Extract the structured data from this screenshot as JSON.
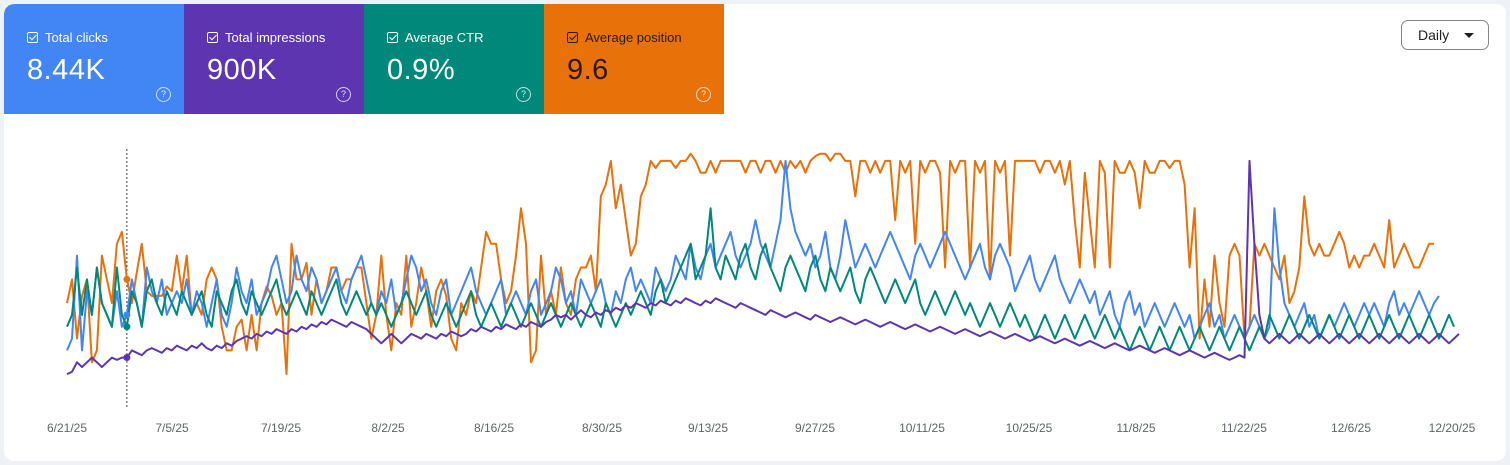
{
  "metrics": [
    {
      "key": "clicks",
      "label": "Total clicks",
      "value": "8.44K",
      "color": "#4285f4",
      "checked": true,
      "help_icon": "help-circle-icon"
    },
    {
      "key": "impressions",
      "label": "Total impressions",
      "value": "900K",
      "color": "#5e35b1",
      "checked": true,
      "help_icon": "help-circle-icon"
    },
    {
      "key": "ctr",
      "label": "Average CTR",
      "value": "0.9%",
      "color": "#00897b",
      "checked": true,
      "help_icon": "help-circle-icon"
    },
    {
      "key": "position",
      "label": "Average position",
      "value": "9.6",
      "color": "#e8710a",
      "checked": true,
      "help_icon": "help-circle-icon"
    }
  ],
  "period_select": {
    "label": "Daily",
    "icon": "caret-down-icon"
  },
  "chart_data": {
    "type": "line",
    "title": "",
    "xlabel": "",
    "ylabel": "",
    "grid": false,
    "x_tick_labels": [
      "6/21/25",
      "7/5/25",
      "7/19/25",
      "8/2/25",
      "8/16/25",
      "8/30/25",
      "9/13/25",
      "9/27/25",
      "10/11/25",
      "10/25/25",
      "11/8/25",
      "11/22/25",
      "12/6/25",
      "12/20/25"
    ],
    "x_range": [
      "6/21/25",
      "12/21/25"
    ],
    "hover_index": 12,
    "series": [
      {
        "key": "position",
        "color": "#e8710a",
        "values": [
          0.35,
          0.45,
          0.2,
          0.38,
          0.45,
          0.1,
          0.15,
          0.55,
          0.45,
          0.35,
          0.6,
          0.65,
          0.45,
          0.35,
          0.48,
          0.6,
          0.4,
          0.38,
          0.38,
          0.38,
          0.42,
          0.4,
          0.55,
          0.4,
          0.55,
          0.3,
          0.35,
          0.3,
          0.45,
          0.5,
          0.45,
          0.25,
          0.15,
          0.15,
          0.25,
          0.28,
          0.15,
          0.3,
          0.15,
          0.35,
          0.42,
          0.38,
          0.3,
          0.35,
          0.05,
          0.6,
          0.45,
          0.45,
          0.52,
          0.3,
          0.45,
          0.35,
          0.4,
          0.5,
          0.5,
          0.4,
          0.45,
          0.45,
          0.5,
          0.5,
          0.35,
          0.2,
          0.3,
          0.55,
          0.3,
          0.15,
          0.35,
          0.3,
          0.55,
          0.25,
          0.35,
          0.5,
          0.4,
          0.25,
          0.4,
          0.45,
          0.38,
          0.2,
          0.15,
          0.35,
          0.3,
          0.4,
          0.35,
          0.5,
          0.65,
          0.6,
          0.6,
          0.45,
          0.35,
          0.4,
          0.55,
          0.75,
          0.6,
          0.1,
          0.15,
          0.55,
          0.3,
          0.4,
          0.3,
          0.5,
          0.35,
          0.3,
          0.45,
          0.5,
          0.5,
          0.55,
          0.4,
          0.8,
          0.85,
          0.95,
          0.75,
          0.85,
          0.7,
          0.55,
          0.6,
          0.8,
          0.85,
          0.95,
          0.92,
          0.95,
          0.95,
          0.95,
          0.92,
          0.95,
          0.95,
          0.98,
          0.95,
          0.9,
          0.9,
          0.95,
          0.9,
          0.95,
          0.95,
          0.95,
          0.95,
          0.95,
          0.9,
          0.95,
          0.95,
          0.9,
          0.95,
          0.95,
          0.9,
          0.95,
          0.9,
          0.95,
          0.92,
          0.95,
          0.9,
          0.95,
          0.97,
          0.98,
          0.98,
          0.95,
          0.98,
          0.98,
          0.95,
          0.95,
          0.8,
          0.95,
          0.95,
          0.9,
          0.95,
          0.9,
          0.95,
          0.95,
          0.7,
          0.95,
          0.9,
          0.95,
          0.6,
          0.95,
          0.9,
          0.95,
          0.95,
          0.9,
          0.5,
          0.95,
          0.9,
          0.95,
          0.95,
          0.5,
          0.95,
          0.9,
          0.95,
          0.45,
          0.95,
          0.9,
          0.95,
          0.55,
          0.95,
          0.95,
          0.95,
          0.95,
          0.95,
          0.9,
          0.95,
          0.95,
          0.9,
          0.95,
          0.85,
          0.95,
          0.7,
          0.5,
          0.9,
          0.7,
          0.5,
          0.95,
          0.9,
          0.5,
          0.95,
          0.9,
          0.9,
          0.95,
          0.9,
          0.75,
          0.95,
          0.9,
          0.9,
          0.95,
          0.95,
          0.92,
          0.95,
          0.95,
          0.85,
          0.5,
          0.75,
          0.2,
          0.45,
          0.25,
          0.55,
          0.35,
          0.25,
          0.55,
          0.6,
          0.55,
          0.2,
          0.25,
          0.6,
          0.55,
          0.6,
          0.55,
          0.5,
          0.45,
          0.55,
          0.35,
          0.4,
          0.5,
          0.8,
          0.6,
          0.55,
          0.6,
          0.55,
          0.55,
          0.6,
          0.65,
          0.6,
          0.5,
          0.55,
          0.5,
          0.55,
          0.55,
          0.6,
          0.55,
          0.5,
          0.7,
          0.5,
          0.55,
          0.6,
          0.55,
          0.5,
          0.5,
          0.55,
          0.6,
          0.6
        ]
      },
      {
        "key": "clicks",
        "color": "#4285f4",
        "values": [
          0.15,
          0.2,
          0.55,
          0.15,
          0.4,
          0.3,
          0.5,
          0.35,
          0.3,
          0.25,
          0.4,
          0.25,
          0.3,
          0.45,
          0.35,
          0.25,
          0.5,
          0.4,
          0.35,
          0.45,
          0.3,
          0.35,
          0.4,
          0.35,
          0.45,
          0.3,
          0.4,
          0.35,
          0.25,
          0.35,
          0.45,
          0.3,
          0.25,
          0.35,
          0.5,
          0.4,
          0.35,
          0.45,
          0.3,
          0.35,
          0.4,
          0.5,
          0.55,
          0.45,
          0.35,
          0.4,
          0.55,
          0.45,
          0.4,
          0.5,
          0.45,
          0.35,
          0.4,
          0.45,
          0.5,
          0.4,
          0.35,
          0.45,
          0.5,
          0.55,
          0.45,
          0.35,
          0.3,
          0.4,
          0.35,
          0.45,
          0.3,
          0.35,
          0.45,
          0.55,
          0.5,
          0.4,
          0.45,
          0.35,
          0.3,
          0.4,
          0.45,
          0.3,
          0.35,
          0.4,
          0.45,
          0.5,
          0.4,
          0.35,
          0.3,
          0.35,
          0.4,
          0.45,
          0.3,
          0.35,
          0.4,
          0.35,
          0.3,
          0.4,
          0.45,
          0.3,
          0.35,
          0.4,
          0.5,
          0.45,
          0.35,
          0.4,
          0.3,
          0.45,
          0.4,
          0.35,
          0.4,
          0.45,
          0.35,
          0.3,
          0.4,
          0.35,
          0.45,
          0.5,
          0.4,
          0.45,
          0.4,
          0.35,
          0.5,
          0.45,
          0.4,
          0.45,
          0.55,
          0.5,
          0.45,
          0.6,
          0.5,
          0.45,
          0.55,
          0.6,
          0.5,
          0.55,
          0.6,
          0.65,
          0.55,
          0.5,
          0.55,
          0.6,
          0.7,
          0.6,
          0.55,
          0.5,
          0.6,
          0.7,
          0.95,
          0.75,
          0.65,
          0.6,
          0.55,
          0.6,
          0.5,
          0.55,
          0.65,
          0.5,
          0.45,
          0.55,
          0.7,
          0.6,
          0.5,
          0.55,
          0.6,
          0.55,
          0.5,
          0.55,
          0.6,
          0.65,
          0.6,
          0.55,
          0.5,
          0.45,
          0.55,
          0.6,
          0.55,
          0.5,
          0.55,
          0.6,
          0.65,
          0.6,
          0.55,
          0.5,
          0.45,
          0.5,
          0.55,
          0.6,
          0.5,
          0.45,
          0.55,
          0.6,
          0.55,
          0.5,
          0.4,
          0.45,
          0.5,
          0.55,
          0.45,
          0.4,
          0.45,
          0.5,
          0.55,
          0.45,
          0.4,
          0.35,
          0.4,
          0.45,
          0.4,
          0.35,
          0.4,
          0.3,
          0.35,
          0.4,
          0.3,
          0.25,
          0.35,
          0.4,
          0.3,
          0.35,
          0.25,
          0.3,
          0.35,
          0.3,
          0.25,
          0.3,
          0.35,
          0.3,
          0.25,
          0.3,
          0.2,
          0.25,
          0.3,
          0.35,
          0.25,
          0.3,
          0.2,
          0.25,
          0.3,
          0.25,
          0.2,
          0.25,
          0.3,
          0.25,
          0.2,
          0.25,
          0.75,
          0.5,
          0.35,
          0.3,
          0.25,
          0.3,
          0.35,
          0.25,
          0.3,
          0.2,
          0.25,
          0.3,
          0.25,
          0.3,
          0.35,
          0.3,
          0.25,
          0.3,
          0.35,
          0.3,
          0.35,
          0.3,
          0.25,
          0.35,
          0.4,
          0.3,
          0.35,
          0.3,
          0.35,
          0.4,
          0.35,
          0.3,
          0.35,
          0.38
        ]
      },
      {
        "key": "ctr",
        "color": "#00897b",
        "values": [
          0.25,
          0.3,
          0.5,
          0.3,
          0.45,
          0.3,
          0.5,
          0.35,
          0.3,
          0.25,
          0.5,
          0.3,
          0.25,
          0.4,
          0.35,
          0.25,
          0.4,
          0.45,
          0.35,
          0.3,
          0.4,
          0.35,
          0.3,
          0.4,
          0.35,
          0.3,
          0.35,
          0.4,
          0.3,
          0.25,
          0.4,
          0.35,
          0.3,
          0.4,
          0.45,
          0.35,
          0.3,
          0.4,
          0.35,
          0.3,
          0.35,
          0.4,
          0.45,
          0.35,
          0.3,
          0.35,
          0.4,
          0.35,
          0.3,
          0.4,
          0.35,
          0.3,
          0.35,
          0.4,
          0.45,
          0.35,
          0.3,
          0.35,
          0.4,
          0.35,
          0.3,
          0.35,
          0.3,
          0.35,
          0.3,
          0.25,
          0.3,
          0.35,
          0.4,
          0.35,
          0.3,
          0.35,
          0.4,
          0.3,
          0.25,
          0.3,
          0.35,
          0.3,
          0.25,
          0.3,
          0.35,
          0.4,
          0.3,
          0.25,
          0.3,
          0.35,
          0.3,
          0.25,
          0.3,
          0.35,
          0.3,
          0.25,
          0.3,
          0.35,
          0.3,
          0.25,
          0.3,
          0.35,
          0.3,
          0.25,
          0.3,
          0.35,
          0.3,
          0.25,
          0.3,
          0.35,
          0.3,
          0.25,
          0.35,
          0.3,
          0.25,
          0.3,
          0.35,
          0.3,
          0.35,
          0.4,
          0.35,
          0.3,
          0.4,
          0.45,
          0.35,
          0.4,
          0.45,
          0.5,
          0.55,
          0.6,
          0.45,
          0.5,
          0.55,
          0.75,
          0.5,
          0.45,
          0.55,
          0.5,
          0.45,
          0.55,
          0.6,
          0.5,
          0.45,
          0.55,
          0.6,
          0.5,
          0.45,
          0.4,
          0.5,
          0.55,
          0.5,
          0.45,
          0.4,
          0.5,
          0.55,
          0.45,
          0.4,
          0.5,
          0.45,
          0.4,
          0.45,
          0.5,
          0.4,
          0.35,
          0.45,
          0.5,
          0.45,
          0.4,
          0.35,
          0.4,
          0.45,
          0.4,
          0.35,
          0.4,
          0.45,
          0.35,
          0.3,
          0.35,
          0.4,
          0.35,
          0.3,
          0.35,
          0.4,
          0.35,
          0.3,
          0.35,
          0.3,
          0.25,
          0.3,
          0.35,
          0.3,
          0.25,
          0.3,
          0.35,
          0.3,
          0.25,
          0.3,
          0.25,
          0.2,
          0.25,
          0.3,
          0.25,
          0.2,
          0.25,
          0.3,
          0.25,
          0.2,
          0.25,
          0.3,
          0.25,
          0.2,
          0.25,
          0.3,
          0.25,
          0.2,
          0.25,
          0.2,
          0.15,
          0.2,
          0.25,
          0.2,
          0.15,
          0.2,
          0.25,
          0.2,
          0.15,
          0.2,
          0.25,
          0.2,
          0.15,
          0.2,
          0.25,
          0.2,
          0.15,
          0.2,
          0.25,
          0.2,
          0.15,
          0.2,
          0.25,
          0.2,
          0.15,
          0.2,
          0.25,
          0.2,
          0.3,
          0.25,
          0.2,
          0.25,
          0.3,
          0.25,
          0.2,
          0.25,
          0.3,
          0.25,
          0.2,
          0.25,
          0.3,
          0.25,
          0.2,
          0.25,
          0.3,
          0.25,
          0.2,
          0.25,
          0.3,
          0.25,
          0.2,
          0.25,
          0.3,
          0.25,
          0.2,
          0.25,
          0.3,
          0.25,
          0.2,
          0.25,
          0.3,
          0.25,
          0.2,
          0.25,
          0.3,
          0.25
        ]
      },
      {
        "key": "impressions",
        "color": "#5e35b1",
        "values": [
          0.05,
          0.06,
          0.1,
          0.08,
          0.1,
          0.12,
          0.1,
          0.08,
          0.1,
          0.12,
          0.11,
          0.12,
          0.12,
          0.15,
          0.14,
          0.13,
          0.15,
          0.16,
          0.15,
          0.14,
          0.16,
          0.15,
          0.17,
          0.16,
          0.15,
          0.17,
          0.16,
          0.18,
          0.16,
          0.15,
          0.17,
          0.16,
          0.18,
          0.17,
          0.19,
          0.2,
          0.21,
          0.2,
          0.22,
          0.21,
          0.23,
          0.22,
          0.24,
          0.23,
          0.22,
          0.24,
          0.23,
          0.25,
          0.24,
          0.26,
          0.25,
          0.27,
          0.26,
          0.28,
          0.27,
          0.26,
          0.25,
          0.27,
          0.26,
          0.25,
          0.24,
          0.22,
          0.2,
          0.18,
          0.2,
          0.22,
          0.2,
          0.18,
          0.2,
          0.22,
          0.21,
          0.2,
          0.22,
          0.21,
          0.2,
          0.22,
          0.21,
          0.23,
          0.22,
          0.21,
          0.22,
          0.24,
          0.23,
          0.25,
          0.24,
          0.23,
          0.25,
          0.24,
          0.26,
          0.25,
          0.24,
          0.26,
          0.25,
          0.27,
          0.26,
          0.25,
          0.27,
          0.28,
          0.3,
          0.29,
          0.3,
          0.28,
          0.3,
          0.32,
          0.3,
          0.29,
          0.31,
          0.3,
          0.32,
          0.31,
          0.33,
          0.32,
          0.34,
          0.33,
          0.35,
          0.34,
          0.33,
          0.35,
          0.34,
          0.36,
          0.35,
          0.34,
          0.36,
          0.35,
          0.37,
          0.36,
          0.35,
          0.34,
          0.36,
          0.35,
          0.37,
          0.36,
          0.35,
          0.34,
          0.33,
          0.35,
          0.34,
          0.33,
          0.32,
          0.31,
          0.3,
          0.32,
          0.31,
          0.3,
          0.29,
          0.3,
          0.31,
          0.3,
          0.29,
          0.28,
          0.3,
          0.29,
          0.28,
          0.27,
          0.28,
          0.29,
          0.28,
          0.27,
          0.26,
          0.27,
          0.28,
          0.27,
          0.26,
          0.25,
          0.26,
          0.27,
          0.26,
          0.25,
          0.24,
          0.25,
          0.26,
          0.25,
          0.24,
          0.23,
          0.24,
          0.25,
          0.24,
          0.23,
          0.22,
          0.23,
          0.24,
          0.23,
          0.22,
          0.21,
          0.22,
          0.23,
          0.22,
          0.21,
          0.2,
          0.21,
          0.22,
          0.21,
          0.2,
          0.19,
          0.2,
          0.21,
          0.2,
          0.19,
          0.18,
          0.19,
          0.2,
          0.19,
          0.18,
          0.17,
          0.18,
          0.19,
          0.18,
          0.17,
          0.16,
          0.17,
          0.18,
          0.17,
          0.16,
          0.15,
          0.16,
          0.17,
          0.16,
          0.15,
          0.14,
          0.15,
          0.16,
          0.15,
          0.14,
          0.13,
          0.14,
          0.15,
          0.14,
          0.13,
          0.12,
          0.13,
          0.14,
          0.13,
          0.12,
          0.11,
          0.12,
          0.13,
          0.12,
          0.95,
          0.6,
          0.3,
          0.2,
          0.18,
          0.2,
          0.22,
          0.2,
          0.18,
          0.2,
          0.22,
          0.2,
          0.18,
          0.2,
          0.22,
          0.2,
          0.18,
          0.2,
          0.22,
          0.2,
          0.18,
          0.2,
          0.22,
          0.2,
          0.18,
          0.2,
          0.22,
          0.2,
          0.18,
          0.2,
          0.22,
          0.2,
          0.18,
          0.2,
          0.22,
          0.2,
          0.18,
          0.2,
          0.22,
          0.2,
          0.18,
          0.2,
          0.22
        ]
      }
    ]
  }
}
